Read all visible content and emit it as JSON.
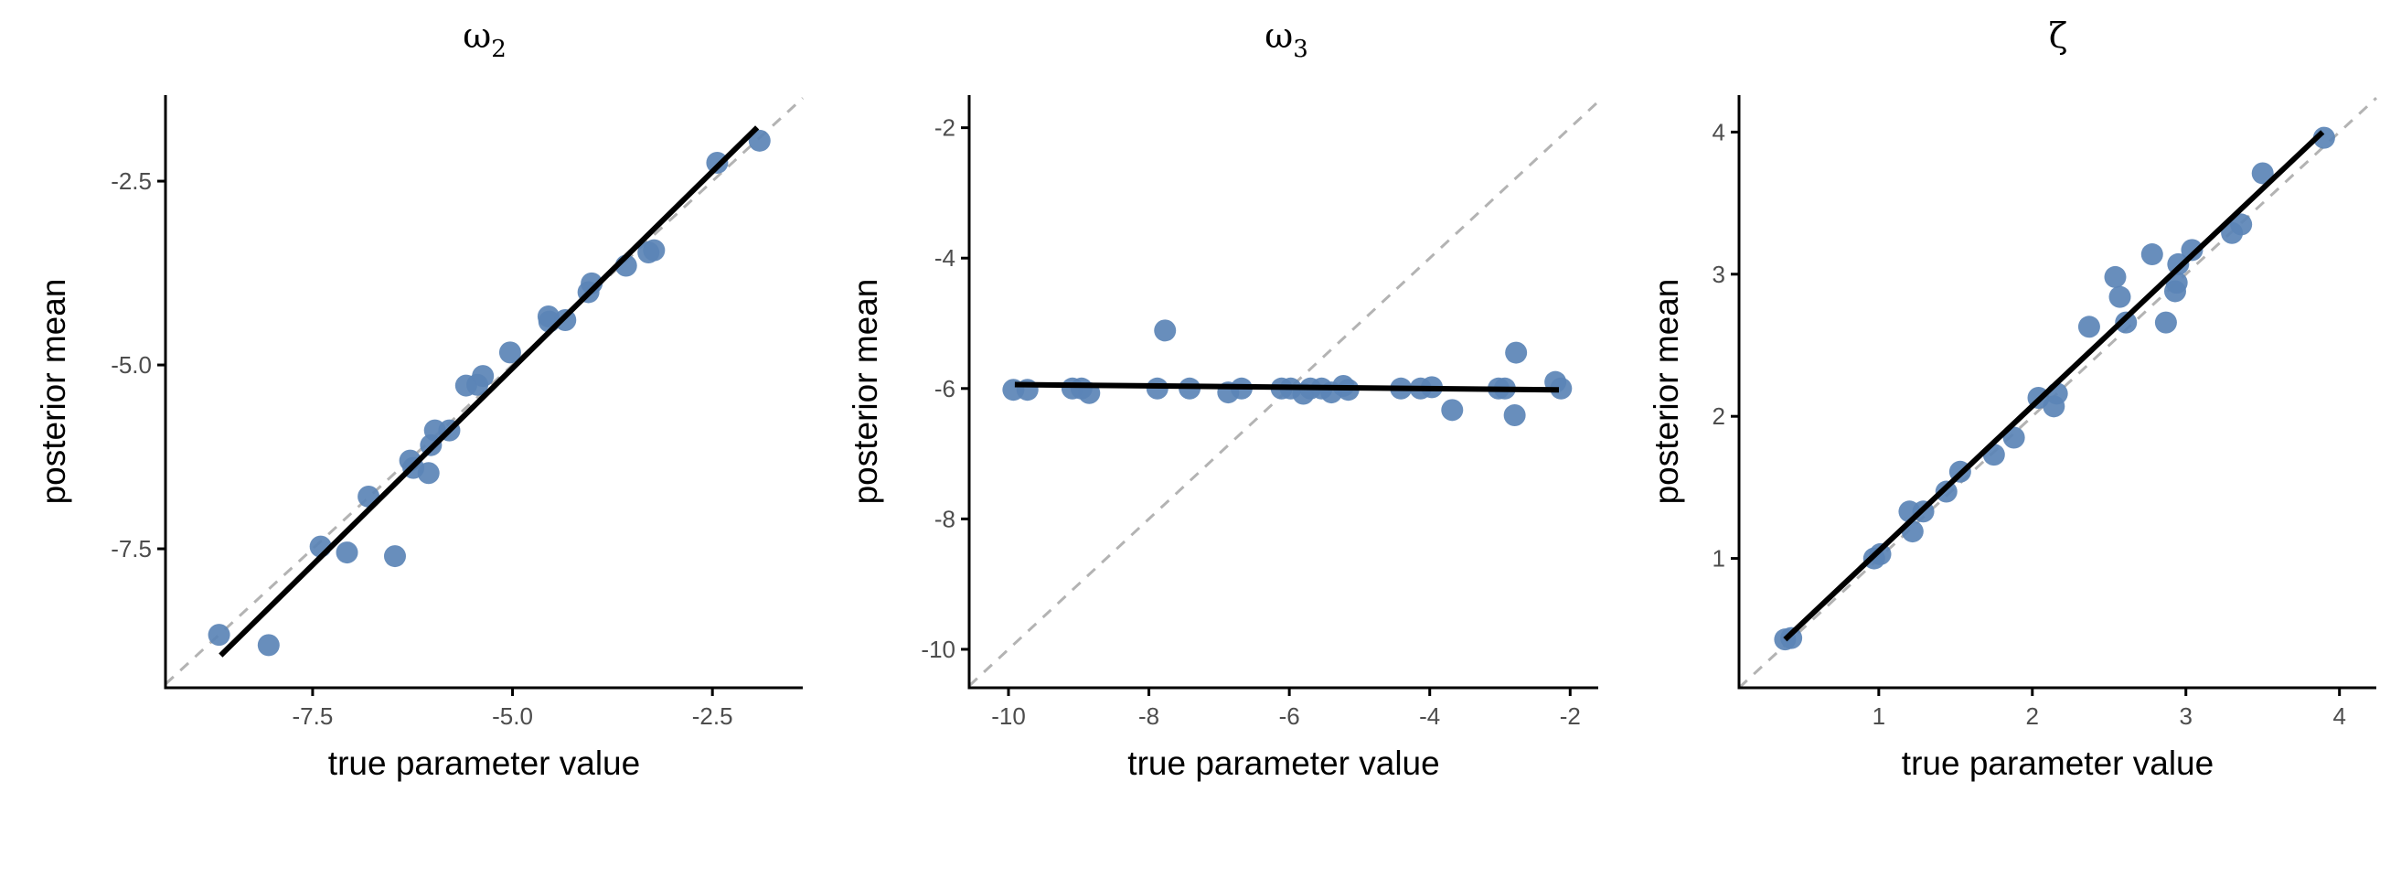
{
  "colors": {
    "point": "#5b84b6",
    "fit_line": "#000000",
    "identity_line": "#b3b3b3",
    "axis": "#000000"
  },
  "chart_data": [
    {
      "type": "scatter",
      "title": "ω",
      "title_subscript": "2",
      "xlabel": "true parameter value",
      "ylabel": "posterior mean",
      "xlim": [
        -9.34,
        -1.37
      ],
      "ylim": [
        -9.39,
        -1.33
      ],
      "xticks": [
        -7.5,
        -5.0,
        -2.5
      ],
      "xtick_labels": [
        "-7.5",
        "-5.0",
        "-2.5"
      ],
      "yticks": [
        -2.5,
        -5.0,
        -7.5
      ],
      "ytick_labels": [
        "-2.5",
        "-5.0",
        "-7.5"
      ],
      "grid": false,
      "identity_line": true,
      "fit_line": [
        [
          -8.65,
          -8.95
        ],
        [
          -1.94,
          -1.77
        ]
      ],
      "points": [
        [
          -8.67,
          -8.67
        ],
        [
          -8.05,
          -8.81
        ],
        [
          -7.4,
          -7.47
        ],
        [
          -7.07,
          -7.55
        ],
        [
          -6.8,
          -6.79
        ],
        [
          -6.47,
          -7.6
        ],
        [
          -6.28,
          -6.3
        ],
        [
          -6.24,
          -6.4
        ],
        [
          -6.05,
          -6.47
        ],
        [
          -6.02,
          -6.09
        ],
        [
          -5.97,
          -5.89
        ],
        [
          -5.79,
          -5.89
        ],
        [
          -5.58,
          -5.28
        ],
        [
          -5.44,
          -5.27
        ],
        [
          -5.37,
          -5.15
        ],
        [
          -5.03,
          -4.83
        ],
        [
          -4.55,
          -4.34
        ],
        [
          -4.54,
          -4.41
        ],
        [
          -4.34,
          -4.39
        ],
        [
          -4.05,
          -4.01
        ],
        [
          -4.01,
          -3.89
        ],
        [
          -3.58,
          -3.65
        ],
        [
          -3.3,
          -3.47
        ],
        [
          -3.23,
          -3.44
        ],
        [
          -2.44,
          -2.25
        ],
        [
          -1.91,
          -1.95
        ]
      ]
    },
    {
      "type": "scatter",
      "title": "ω",
      "title_subscript": "3",
      "xlabel": "true parameter value",
      "ylabel": "posterior mean",
      "xlim": [
        -10.56,
        -1.6
      ],
      "ylim": [
        -10.59,
        -1.5
      ],
      "xticks": [
        -10,
        -8,
        -6,
        -4,
        -2
      ],
      "xtick_labels": [
        "-10",
        "-8",
        "-6",
        "-4",
        "-2"
      ],
      "yticks": [
        -2,
        -4,
        -6,
        -8,
        -10
      ],
      "ytick_labels": [
        "-2",
        "-4",
        "-6",
        "-8",
        "-10"
      ],
      "grid": false,
      "identity_line": true,
      "fit_line": [
        [
          -9.91,
          -5.94
        ],
        [
          -2.16,
          -6.02
        ]
      ],
      "points": [
        [
          -9.93,
          -6.02
        ],
        [
          -9.73,
          -6.02
        ],
        [
          -9.09,
          -6.0
        ],
        [
          -8.96,
          -6.0
        ],
        [
          -8.85,
          -6.07
        ],
        [
          -7.88,
          -6.0
        ],
        [
          -7.77,
          -5.11
        ],
        [
          -7.42,
          -6.0
        ],
        [
          -6.87,
          -6.06
        ],
        [
          -6.68,
          -6.0
        ],
        [
          -6.11,
          -6.0
        ],
        [
          -5.98,
          -6.0
        ],
        [
          -5.8,
          -6.08
        ],
        [
          -5.7,
          -6.0
        ],
        [
          -5.54,
          -6.0
        ],
        [
          -5.4,
          -6.06
        ],
        [
          -5.23,
          -5.96
        ],
        [
          -5.16,
          -6.02
        ],
        [
          -4.41,
          -6.0
        ],
        [
          -4.13,
          -6.0
        ],
        [
          -3.97,
          -5.98
        ],
        [
          -3.68,
          -6.33
        ],
        [
          -3.02,
          -6.0
        ],
        [
          -2.93,
          -6.0
        ],
        [
          -2.77,
          -5.45
        ],
        [
          -2.79,
          -6.41
        ],
        [
          -2.21,
          -5.9
        ],
        [
          -2.13,
          -6.0
        ]
      ]
    },
    {
      "type": "scatter",
      "title": "ζ",
      "title_subscript": "",
      "xlabel": "true parameter value",
      "ylabel": "posterior mean",
      "xlim": [
        0.09,
        4.24
      ],
      "ylim": [
        0.09,
        4.26
      ],
      "xticks": [
        1,
        2,
        3,
        4
      ],
      "xtick_labels": [
        "1",
        "2",
        "3",
        "4"
      ],
      "yticks": [
        4,
        3,
        2,
        1
      ],
      "ytick_labels": [
        "4",
        "3",
        "2",
        "1"
      ],
      "grid": false,
      "identity_line": true,
      "fit_line": [
        [
          0.39,
          0.43
        ],
        [
          3.89,
          4.0
        ]
      ],
      "points": [
        [
          0.39,
          0.43
        ],
        [
          0.43,
          0.44
        ],
        [
          0.97,
          1.0
        ],
        [
          1.01,
          1.03
        ],
        [
          1.2,
          1.33
        ],
        [
          1.22,
          1.19
        ],
        [
          1.29,
          1.33
        ],
        [
          1.44,
          1.47
        ],
        [
          1.53,
          1.61
        ],
        [
          1.75,
          1.73
        ],
        [
          1.88,
          1.85
        ],
        [
          2.04,
          2.13
        ],
        [
          2.14,
          2.07
        ],
        [
          2.16,
          2.16
        ],
        [
          2.37,
          2.63
        ],
        [
          2.54,
          2.98
        ],
        [
          2.57,
          2.84
        ],
        [
          2.61,
          2.66
        ],
        [
          2.78,
          3.14
        ],
        [
          2.87,
          2.66
        ],
        [
          2.93,
          2.88
        ],
        [
          2.94,
          2.94
        ],
        [
          2.95,
          3.07
        ],
        [
          3.04,
          3.17
        ],
        [
          3.3,
          3.29
        ],
        [
          3.36,
          3.35
        ],
        [
          3.5,
          3.71
        ],
        [
          3.9,
          3.96
        ]
      ]
    }
  ]
}
